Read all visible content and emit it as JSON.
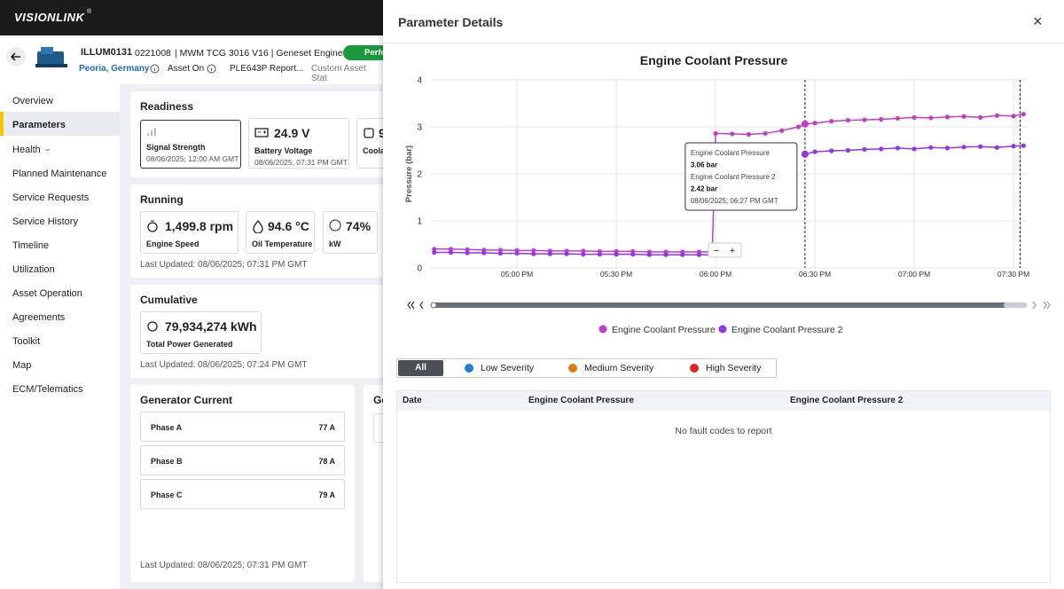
{
  "app": {
    "logo": "VISIONLINK",
    "logo_mark": "®"
  },
  "asset": {
    "id": "ILLUM0131",
    "serial": "0221008",
    "model": "| MWM TCG 3016 V16 | Geneset Engines",
    "status": "Perfo",
    "location": "Peoria, Germany",
    "state": "Asset On",
    "report": "PLE643P Report...",
    "custom": "Custom Asset Stat"
  },
  "nav": {
    "items": [
      "Overview",
      "Parameters",
      "Health",
      "Planned Maintenance",
      "Service Requests",
      "Service History",
      "Timeline",
      "Utilization",
      "Asset Operation",
      "Agreements",
      "Toolkit",
      "Map",
      "ECM/Telematics"
    ],
    "selected": 1
  },
  "readiness": {
    "title": "Readiness",
    "tiles": [
      {
        "label": "Signal Strength",
        "date": "08/06/2025; 12:00 AM GMT"
      },
      {
        "value": "24.9 V",
        "label": "Battery Voltage",
        "date": "08/06/2025; 07:31 PM GMT"
      },
      {
        "value": "9",
        "label": "Coolan"
      }
    ]
  },
  "running": {
    "title": "Running",
    "tiles": [
      {
        "value": "1,499.8 rpm",
        "label": "Engine Speed"
      },
      {
        "value": "94.6 °C",
        "label": "Oil Temperature"
      },
      {
        "value": "74%",
        "label": "kW"
      }
    ],
    "updated": "Last Updated: 08/06/2025; 07:31 PM GMT"
  },
  "cumulative": {
    "title": "Cumulative",
    "tiles": [
      {
        "value": "79,934,274 kWh",
        "label": "Total Power Generated"
      }
    ],
    "updated": "Last Updated: 08/06/2025; 07:24 PM GMT"
  },
  "generator_current": {
    "title": "Generator Current",
    "rows": [
      [
        "Phase A",
        "77 A"
      ],
      [
        "Phase B",
        "78 A"
      ],
      [
        "Phase C",
        "79 A"
      ]
    ],
    "updated": "Last Updated: 08/06/2025; 07:31 PM GMT"
  },
  "generator_other": {
    "title": "Ge"
  },
  "panel": {
    "title": "Parameter Details",
    "close": "×",
    "zoom": [
      "−",
      "+"
    ],
    "severity": {
      "items": [
        "All",
        "Low Severity",
        "Medium Severity",
        "High Severity"
      ],
      "colors": [
        null,
        "#1f7fd1",
        "#e07b16",
        "#e02424"
      ]
    },
    "table": {
      "columns": [
        "Date",
        "Engine Coolant Pressure",
        "Engine Coolant Pressure 2"
      ],
      "empty": "No fault codes to report"
    }
  },
  "chart_data": {
    "type": "line",
    "title": "Engine Coolant Pressure",
    "y_label": "Pressure (bar)",
    "x": [
      "04:35 PM",
      "04:40 PM",
      "04:45 PM",
      "04:50 PM",
      "04:55 PM",
      "05:00 PM",
      "05:05 PM",
      "05:10 PM",
      "05:15 PM",
      "05:20 PM",
      "05:25 PM",
      "05:30 PM",
      "05:35 PM",
      "05:40 PM",
      "05:45 PM",
      "05:50 PM",
      "05:55 PM",
      "05:59 PM",
      "06:00 PM",
      "06:05 PM",
      "06:10 PM",
      "06:15 PM",
      "06:20 PM",
      "06:25 PM",
      "06:27 PM",
      "06:30 PM",
      "06:35 PM",
      "06:40 PM",
      "06:45 PM",
      "06:50 PM",
      "06:55 PM",
      "07:00 PM",
      "07:05 PM",
      "07:10 PM",
      "07:15 PM",
      "07:20 PM",
      "07:25 PM",
      "07:30 PM",
      "07:33 PM"
    ],
    "series": [
      {
        "name": "Engine Coolant Pressure",
        "color": "#c43dc9",
        "values": [
          0.4,
          0.4,
          0.39,
          0.38,
          0.38,
          0.37,
          0.37,
          0.36,
          0.36,
          0.36,
          0.35,
          0.35,
          0.35,
          0.34,
          0.34,
          0.34,
          0.34,
          0.34,
          2.86,
          2.85,
          2.84,
          2.86,
          2.92,
          3.0,
          3.06,
          3.08,
          3.12,
          3.14,
          3.15,
          3.16,
          3.18,
          3.2,
          3.19,
          3.21,
          3.22,
          3.2,
          3.24,
          3.23,
          3.27
        ]
      },
      {
        "name": "Engine Coolant Pressure 2",
        "color": "#9333ea",
        "values": [
          0.33,
          0.33,
          0.32,
          0.32,
          0.31,
          0.31,
          0.3,
          0.3,
          0.3,
          0.29,
          0.29,
          0.29,
          0.29,
          0.28,
          0.28,
          0.28,
          0.28,
          0.28,
          null,
          null,
          null,
          null,
          null,
          null,
          2.42,
          2.47,
          2.49,
          2.5,
          2.52,
          2.53,
          2.55,
          2.53,
          2.56,
          2.55,
          2.57,
          2.58,
          2.56,
          2.59,
          2.6
        ]
      }
    ],
    "xlim": [
      "04:34 PM",
      "07:34 PM"
    ],
    "xticks": [
      "05:00 PM",
      "05:30 PM",
      "06:00 PM",
      "06:30 PM",
      "07:00 PM",
      "07:30 PM"
    ],
    "ylim": [
      0,
      4
    ],
    "yticks": [
      0,
      1,
      2,
      3,
      4
    ],
    "grid": true,
    "legend": "bottom",
    "reference_lines": [
      "07:32 PM"
    ],
    "tooltip": {
      "index": 24,
      "labels": [
        "3.06 bar",
        "2.42 bar"
      ],
      "date": "08/06/2025; 06:27 PM GMT"
    }
  }
}
